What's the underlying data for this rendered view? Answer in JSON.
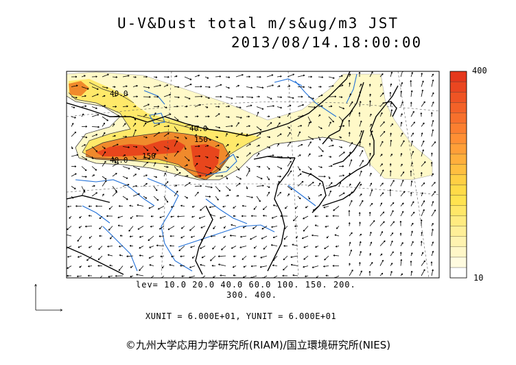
{
  "title": {
    "line1": "U-V&Dust total m/s&ug/m3 JST",
    "line2": "2013/08/14.18:00:00"
  },
  "map": {
    "contour_labels": [
      "40.0",
      "40.0",
      "150",
      "150",
      "40.0"
    ],
    "colors": {
      "low": "#fff9c8",
      "mid": "#ffe96a",
      "high": "#f08a2c",
      "peak": "#e8461c",
      "rivers": "#1f6fd8",
      "coast": "#000000"
    }
  },
  "colorbar": {
    "max_label": "400",
    "min_label": "10",
    "min_value": 10,
    "max_value": 400,
    "steps": [
      "#ffffff",
      "#fffbe0",
      "#fff7c8",
      "#fff3b0",
      "#ffef98",
      "#ffeb80",
      "#ffe768",
      "#ffe350",
      "#ffdb48",
      "#ffcf44",
      "#ffbf40",
      "#ffaf3c",
      "#ff9f38",
      "#ff8f34",
      "#fb7f30",
      "#f7702c",
      "#f36228",
      "#ef5424",
      "#ea4620",
      "#e5381c"
    ]
  },
  "legend": {
    "lev_line1": "lev= 10.0 20.0 40.0 60.0 100. 150. 200.",
    "lev_line2": "300. 400.",
    "units": "XUNIT = 6.000E+01, YUNIT = 6.000E+01"
  },
  "credit": "©九州大学応用力学研究所(RIAM)/国立環境研究所(NIES)"
}
